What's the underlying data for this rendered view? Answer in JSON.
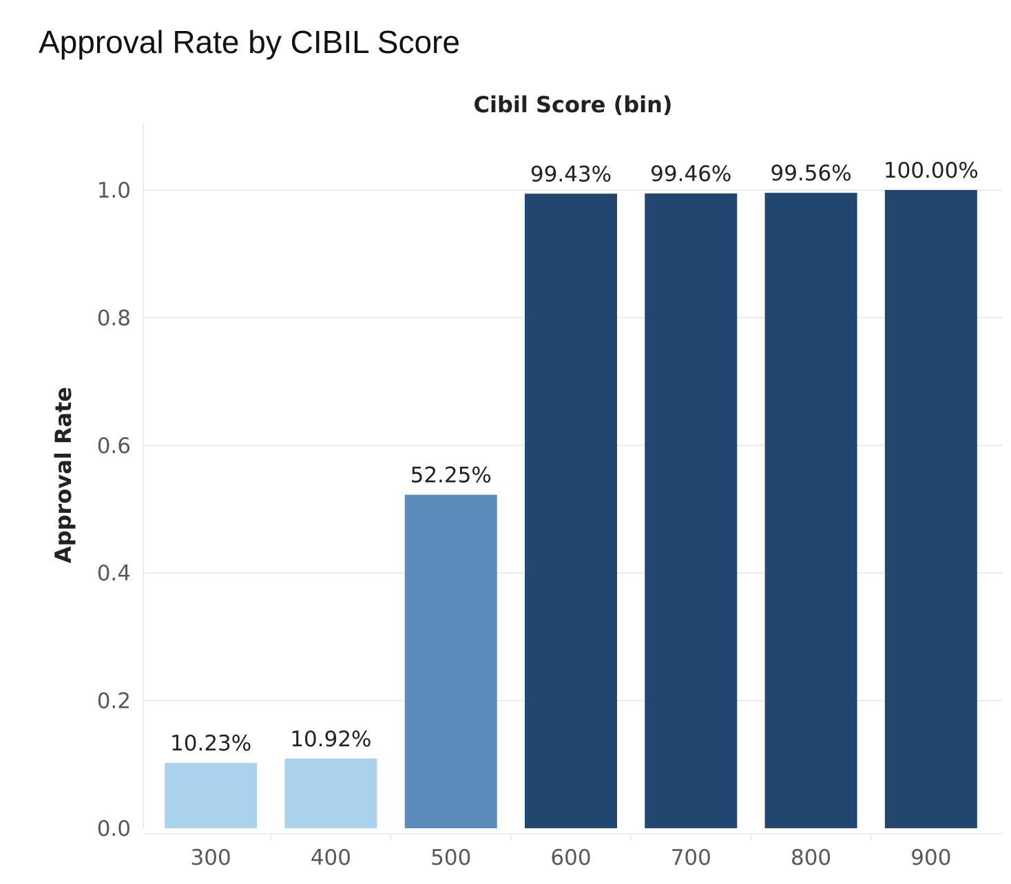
{
  "chart_data": {
    "type": "bar",
    "title": "Approval Rate by CIBIL Score",
    "xlabel": "Cibil Score (bin)",
    "ylabel": "Approval Rate",
    "categories": [
      "300",
      "400",
      "500",
      "600",
      "700",
      "800",
      "900"
    ],
    "values": [
      0.1023,
      0.1092,
      0.5225,
      0.9943,
      0.9946,
      0.9956,
      1.0
    ],
    "data_labels": [
      "10.23%",
      "10.92%",
      "52.25%",
      "99.43%",
      "99.46%",
      "99.56%",
      "100.00%"
    ],
    "colors": [
      "#abd2ec",
      "#abd2ec",
      "#5b8bbb",
      "#224670",
      "#224670",
      "#224670",
      "#224670"
    ],
    "ylim": [
      0,
      1.1
    ],
    "yticks": [
      "0.0",
      "0.2",
      "0.4",
      "0.6",
      "0.8",
      "1.0"
    ],
    "xlabel_position": "top",
    "grid": true
  }
}
